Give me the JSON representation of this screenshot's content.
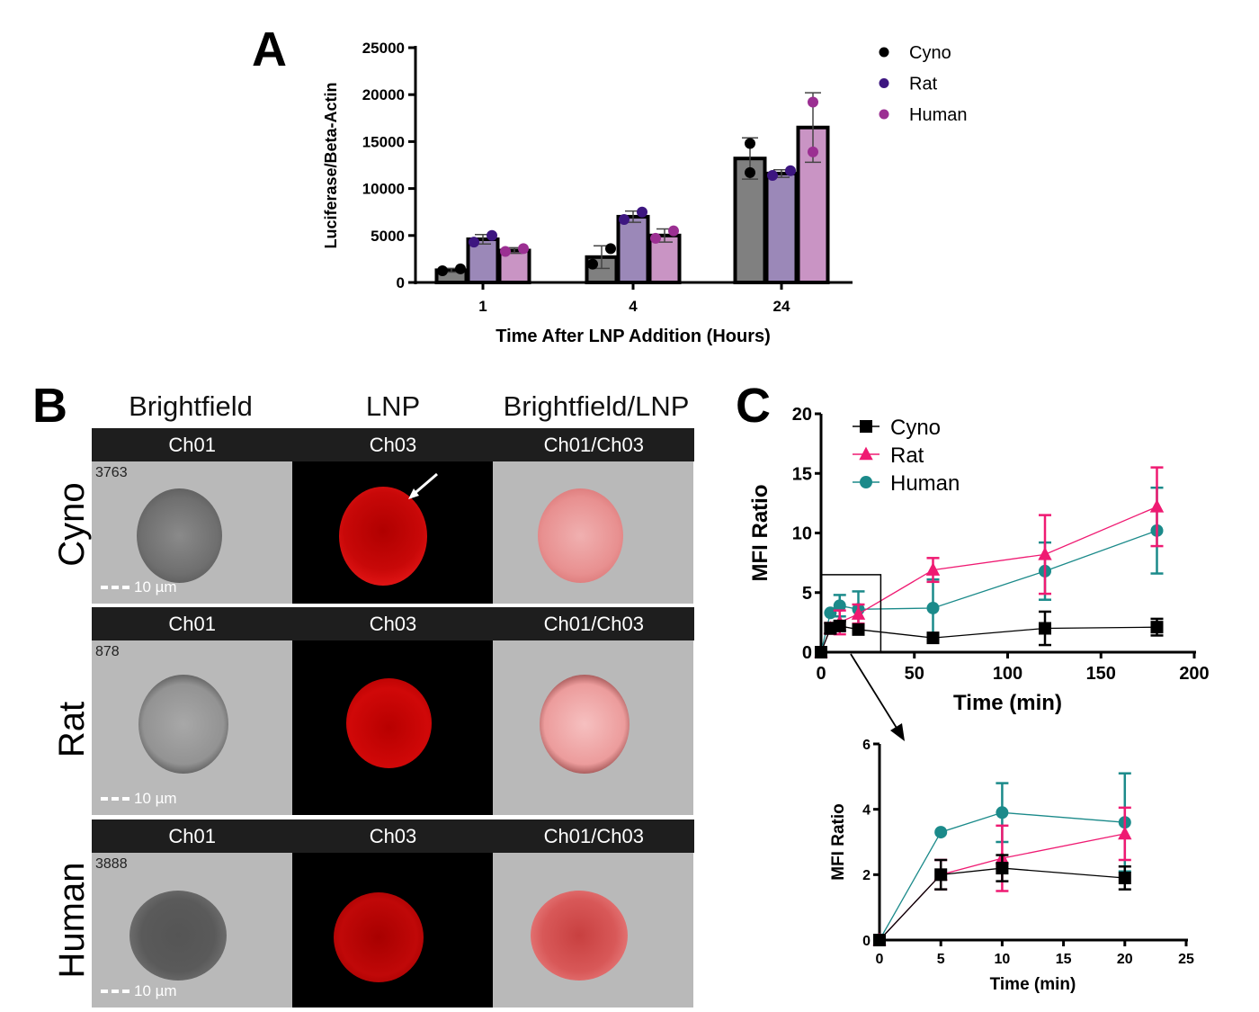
{
  "panels": {
    "a": {
      "letter": "A"
    },
    "b": {
      "letter": "B"
    },
    "c": {
      "letter": "C"
    }
  },
  "chart_data": [
    {
      "id": "panel-a",
      "type": "bar",
      "title": "",
      "xlabel": "Time After LNP Addition (Hours)",
      "ylabel": "Luciferase/Beta-Actin",
      "ylim": [
        0,
        25000
      ],
      "yticks": [
        0,
        5000,
        10000,
        15000,
        20000,
        25000
      ],
      "categories": [
        "1",
        "4",
        "24"
      ],
      "legend_position": "right",
      "series": [
        {
          "name": "Cyno",
          "bar_color": "#808080",
          "point_color": "#000000",
          "values": [
            1300,
            2700,
            13200
          ],
          "errors": [
            200,
            1200,
            2200
          ],
          "points": [
            [
              1250,
              1450
            ],
            [
              1950,
              3600
            ],
            [
              11700,
              14800
            ]
          ]
        },
        {
          "name": "Rat",
          "bar_color": "#9b88b8",
          "point_color": "#3d1680",
          "values": [
            4600,
            7000,
            11600
          ],
          "errors": [
            500,
            600,
            400
          ],
          "points": [
            [
              4300,
              5000
            ],
            [
              6700,
              7500
            ],
            [
              11400,
              11900
            ]
          ]
        },
        {
          "name": "Human",
          "bar_color": "#c994c4",
          "point_color": "#9b2f92",
          "values": [
            3400,
            5000,
            16500
          ],
          "errors": [
            300,
            700,
            3700
          ],
          "points": [
            [
              3300,
              3600
            ],
            [
              4700,
              5500
            ],
            [
              13900,
              19200
            ]
          ]
        }
      ]
    },
    {
      "id": "panel-c-main",
      "type": "line",
      "xlabel": "Time (min)",
      "ylabel": "MFI Ratio",
      "xlim": [
        0,
        200
      ],
      "ylim": [
        0,
        20
      ],
      "xticks": [
        0,
        50,
        100,
        150,
        200
      ],
      "yticks": [
        0,
        5,
        10,
        15,
        20
      ],
      "legend_position": "top-left",
      "x": [
        0,
        5,
        10,
        20,
        60,
        120,
        180
      ],
      "series": [
        {
          "name": "Cyno",
          "color": "#000000",
          "marker": "square",
          "values": [
            0,
            2.0,
            2.2,
            1.9,
            1.2,
            2.0,
            2.1
          ],
          "errors": [
            0,
            0.45,
            0.4,
            0.35,
            0.2,
            1.4,
            0.7
          ]
        },
        {
          "name": "Rat",
          "color": "#ef1a72",
          "marker": "triangle",
          "values": [
            0,
            2.0,
            2.5,
            3.2,
            6.9,
            8.2,
            12.2
          ],
          "errors": [
            0,
            0.45,
            1.0,
            0.8,
            1.0,
            3.3,
            3.3
          ]
        },
        {
          "name": "Human",
          "color": "#1b8a8a",
          "marker": "circle",
          "values": [
            0,
            3.3,
            3.9,
            3.6,
            3.7,
            6.8,
            10.2
          ],
          "errors": [
            0,
            0,
            0.9,
            1.5,
            2.4,
            2.4,
            3.6
          ]
        }
      ],
      "inset_box": {
        "x_range": [
          0,
          32
        ],
        "y_range": [
          0,
          6.5
        ]
      }
    },
    {
      "id": "panel-c-inset",
      "type": "line",
      "xlabel": "Time (min)",
      "ylabel": "MFI Ratio",
      "xlim": [
        0,
        25
      ],
      "ylim": [
        0,
        6
      ],
      "xticks": [
        0,
        5,
        10,
        15,
        20,
        25
      ],
      "yticks": [
        0,
        2,
        4,
        6
      ],
      "x": [
        0,
        5,
        10,
        20
      ],
      "series": [
        {
          "name": "Cyno",
          "color": "#000000",
          "marker": "square",
          "values": [
            0,
            2.0,
            2.2,
            1.9
          ],
          "errors": [
            0,
            0.45,
            0.4,
            0.35
          ]
        },
        {
          "name": "Rat",
          "color": "#ef1a72",
          "marker": "triangle",
          "values": [
            0,
            2.0,
            2.5,
            3.25
          ],
          "errors": [
            0,
            0.45,
            1.0,
            0.8
          ]
        },
        {
          "name": "Human",
          "color": "#1b8a8a",
          "marker": "circle",
          "values": [
            0,
            3.3,
            3.9,
            3.6
          ],
          "errors": [
            0,
            0,
            0.9,
            1.5
          ]
        }
      ]
    }
  ],
  "panel_b": {
    "column_headers": [
      "Brightfield",
      "LNP",
      "Brightfield/LNP"
    ],
    "channel_labels": [
      "Ch01",
      "Ch03",
      "Ch01/Ch03"
    ],
    "scale_bar": "10 µm",
    "rows": [
      {
        "species": "Cyno",
        "image_id": "3763",
        "arrow": true
      },
      {
        "species": "Rat",
        "image_id": "878",
        "arrow": false
      },
      {
        "species": "Human",
        "image_id": "3888",
        "arrow": false
      }
    ],
    "colors": {
      "lnp_red": "#e01010",
      "channel_bar": "#1e1e1e"
    }
  }
}
